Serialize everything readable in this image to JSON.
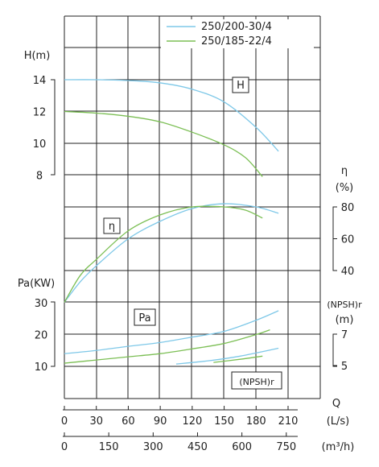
{
  "chart_data": {
    "type": "line",
    "legend": {
      "placement": "top-right",
      "entries": [
        {
          "name": "250/200-30/4",
          "color": "#7ec8e8"
        },
        {
          "name": "250/185-22/4",
          "color": "#7cbf55"
        }
      ]
    },
    "axes": {
      "q_ls": {
        "label": "Q",
        "unit": "(L/s)",
        "ticks": [
          0,
          30,
          60,
          90,
          120,
          150,
          180,
          210
        ],
        "range": [
          0,
          210
        ]
      },
      "q_m3h": {
        "unit": "(m³/h)",
        "ticks": [
          0,
          150,
          300,
          450,
          600,
          750
        ]
      },
      "head": {
        "label": "H(m)",
        "ticks": [
          8,
          10,
          12,
          14
        ]
      },
      "efficiency": {
        "label": "η",
        "unit": "(%)",
        "ticks": [
          40,
          60,
          80
        ]
      },
      "power": {
        "label": "Pa(KW)",
        "ticks": [
          10,
          20,
          30
        ]
      },
      "npsh": {
        "label": "(NPSH)r",
        "unit": "(m)",
        "ticks": [
          5,
          7
        ]
      }
    },
    "curve_labels": {
      "head": "H",
      "efficiency": "η",
      "power": "Pa",
      "npsh": "(NPSH)r"
    },
    "series": [
      {
        "name": "250/200-30/4",
        "quantity": "head",
        "x": [
          0,
          30,
          60,
          90,
          120,
          150,
          180,
          201
        ],
        "y": [
          14.0,
          14.0,
          13.95,
          13.8,
          13.4,
          12.6,
          11.0,
          9.5
        ]
      },
      {
        "name": "250/185-22/4",
        "quantity": "head",
        "x": [
          0,
          30,
          60,
          90,
          120,
          150,
          170,
          186
        ],
        "y": [
          12.0,
          11.9,
          11.7,
          11.35,
          10.7,
          9.9,
          9.1,
          7.9
        ]
      },
      {
        "name": "250/200-30/4",
        "quantity": "efficiency",
        "x": [
          0,
          15,
          30,
          60,
          90,
          120,
          150,
          180,
          201
        ],
        "y": [
          20,
          33,
          43,
          60,
          71,
          79,
          82,
          80,
          76
        ]
      },
      {
        "name": "250/185-22/4",
        "quantity": "efficiency",
        "x": [
          0,
          15,
          30,
          60,
          90,
          120,
          150,
          170,
          186
        ],
        "y": [
          20,
          37,
          47,
          65,
          75,
          80,
          80,
          78,
          73
        ]
      },
      {
        "name": "250/200-30/4",
        "quantity": "power",
        "x": [
          0,
          30,
          60,
          90,
          120,
          150,
          180,
          201
        ],
        "y": [
          14,
          15,
          16.3,
          17.5,
          19.2,
          21,
          24.5,
          27.5
        ]
      },
      {
        "name": "250/185-22/4",
        "quantity": "power",
        "x": [
          0,
          30,
          60,
          90,
          120,
          150,
          180,
          193
        ],
        "y": [
          11,
          12,
          13,
          14,
          15.5,
          17.2,
          20,
          21.5
        ]
      },
      {
        "name": "250/200-30/4",
        "quantity": "npsh",
        "x": [
          105,
          135,
          165,
          201
        ],
        "y": [
          5.1,
          5.3,
          5.6,
          6.1
        ]
      },
      {
        "name": "250/185-22/4",
        "quantity": "npsh",
        "x": [
          140,
          165,
          186
        ],
        "y": [
          5.2,
          5.4,
          5.6
        ]
      }
    ]
  }
}
